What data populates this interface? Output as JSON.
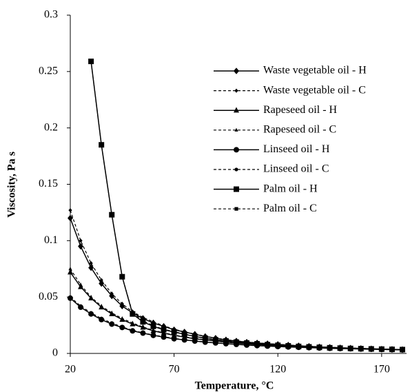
{
  "chart_data": {
    "type": "line",
    "x_label": "Temperature, °C",
    "y_label": "Viscosity, Pa s",
    "x": [
      20,
      25,
      30,
      35,
      40,
      45,
      50,
      55,
      60,
      65,
      70,
      75,
      80,
      85,
      90,
      95,
      100,
      105,
      110,
      115,
      120,
      125,
      130,
      135,
      140,
      145,
      150,
      155,
      160,
      165,
      170,
      175,
      180
    ],
    "xlim": [
      20,
      182
    ],
    "xticks": [
      20,
      70,
      120,
      170
    ],
    "ylim": [
      0,
      0.3
    ],
    "yticks": [
      0,
      0.05,
      0.1,
      0.15,
      0.2,
      0.25,
      0.3
    ],
    "grid": false,
    "legend": "upper right",
    "series": [
      {
        "name": "Waste vegetable oil - H",
        "color": "#000000",
        "marker": "diamond",
        "dashed": false,
        "values": [
          0.12,
          0.095,
          0.076,
          0.062,
          0.051,
          0.042,
          0.036,
          0.031,
          0.027,
          0.024,
          0.021,
          0.019,
          0.017,
          0.015,
          0.0135,
          0.012,
          0.011,
          0.01,
          0.0093,
          0.0086,
          0.008,
          0.0074,
          0.0068,
          0.0063,
          0.0058,
          0.0054,
          0.005,
          0.0047,
          0.0044,
          0.0041,
          0.0038,
          0.0036,
          0.0034
        ]
      },
      {
        "name": "Waste vegetable oil - C",
        "color": "#000000",
        "marker": "diamond",
        "dashed": true,
        "values": [
          0.127,
          0.1,
          0.08,
          0.065,
          0.053,
          0.044,
          0.037,
          0.032,
          0.028,
          0.0245,
          0.0215,
          0.0192,
          0.0172,
          0.0152,
          0.0137,
          0.0122,
          0.0112,
          0.0102,
          0.0094,
          0.0087,
          0.0081,
          0.0075,
          0.0069,
          0.0064,
          0.0059,
          0.0055,
          0.0051,
          0.0048,
          0.0045,
          0.0042,
          0.0039,
          0.0037,
          0.0035
        ]
      },
      {
        "name": "Rapeseed oil - H",
        "color": "#000000",
        "marker": "triangle",
        "dashed": false,
        "values": [
          0.072,
          0.059,
          0.049,
          0.041,
          0.035,
          0.03,
          0.026,
          0.023,
          0.02,
          0.018,
          0.016,
          0.0145,
          0.013,
          0.012,
          0.011,
          0.01,
          0.0092,
          0.0085,
          0.0079,
          0.0073,
          0.0068,
          0.0063,
          0.0059,
          0.0055,
          0.0052,
          0.0049,
          0.0046,
          0.0043,
          0.0041,
          0.0039,
          0.0037,
          0.0035,
          0.0033
        ]
      },
      {
        "name": "Rapeseed oil - C",
        "color": "#000000",
        "marker": "triangle",
        "dashed": true,
        "values": [
          0.075,
          0.061,
          0.05,
          0.042,
          0.036,
          0.031,
          0.027,
          0.0235,
          0.0205,
          0.0183,
          0.0163,
          0.0148,
          0.0133,
          0.0122,
          0.0112,
          0.0102,
          0.0094,
          0.0087,
          0.008,
          0.0074,
          0.0069,
          0.0064,
          0.006,
          0.0056,
          0.0053,
          0.005,
          0.0047,
          0.0044,
          0.0042,
          0.004,
          0.0038,
          0.0036,
          0.0034
        ]
      },
      {
        "name": "Linseed oil - H",
        "color": "#000000",
        "marker": "circle",
        "dashed": false,
        "values": [
          0.049,
          0.041,
          0.035,
          0.03,
          0.026,
          0.023,
          0.02,
          0.018,
          0.016,
          0.0145,
          0.013,
          0.012,
          0.011,
          0.01,
          0.0093,
          0.0086,
          0.008,
          0.0074,
          0.0069,
          0.0065,
          0.0061,
          0.0057,
          0.0054,
          0.0051,
          0.0048,
          0.0045,
          0.0043,
          0.0041,
          0.0039,
          0.0037,
          0.0035,
          0.0033,
          0.0031
        ]
      },
      {
        "name": "Linseed oil - C",
        "color": "#000000",
        "marker": "circle",
        "dashed": true,
        "values": [
          0.05,
          0.042,
          0.036,
          0.031,
          0.027,
          0.0235,
          0.0205,
          0.0183,
          0.0163,
          0.0148,
          0.0133,
          0.0122,
          0.0112,
          0.0102,
          0.0094,
          0.0087,
          0.0081,
          0.0075,
          0.007,
          0.0066,
          0.0062,
          0.0058,
          0.0055,
          0.0052,
          0.0049,
          0.0046,
          0.0044,
          0.0042,
          0.004,
          0.0038,
          0.0036,
          0.0034,
          0.0032
        ]
      },
      {
        "name": "Palm oil - H",
        "color": "#000000",
        "marker": "square",
        "dashed": false,
        "values": [
          null,
          null,
          0.259,
          0.185,
          0.123,
          0.068,
          0.035,
          0.028,
          0.024,
          0.021,
          0.019,
          0.017,
          0.015,
          0.0135,
          0.012,
          0.011,
          0.01,
          0.0092,
          0.0085,
          0.0078,
          0.0072,
          0.0067,
          0.0062,
          0.0058,
          0.0054,
          0.005,
          0.0047,
          0.0044,
          0.0042,
          0.004,
          0.0038,
          0.0036,
          0.0034
        ]
      },
      {
        "name": "Palm oil - C",
        "color": "#000000",
        "marker": "square",
        "dashed": true,
        "values": [
          null,
          null,
          0.259,
          0.185,
          0.123,
          0.068,
          0.036,
          0.029,
          0.0245,
          0.0215,
          0.0193,
          0.0172,
          0.0152,
          0.0137,
          0.0122,
          0.0112,
          0.0102,
          0.0094,
          0.0086,
          0.0079,
          0.0073,
          0.0068,
          0.0063,
          0.0059,
          0.0055,
          0.0051,
          0.0048,
          0.0045,
          0.0043,
          0.0041,
          0.0039,
          0.0037,
          0.0035
        ]
      }
    ]
  }
}
